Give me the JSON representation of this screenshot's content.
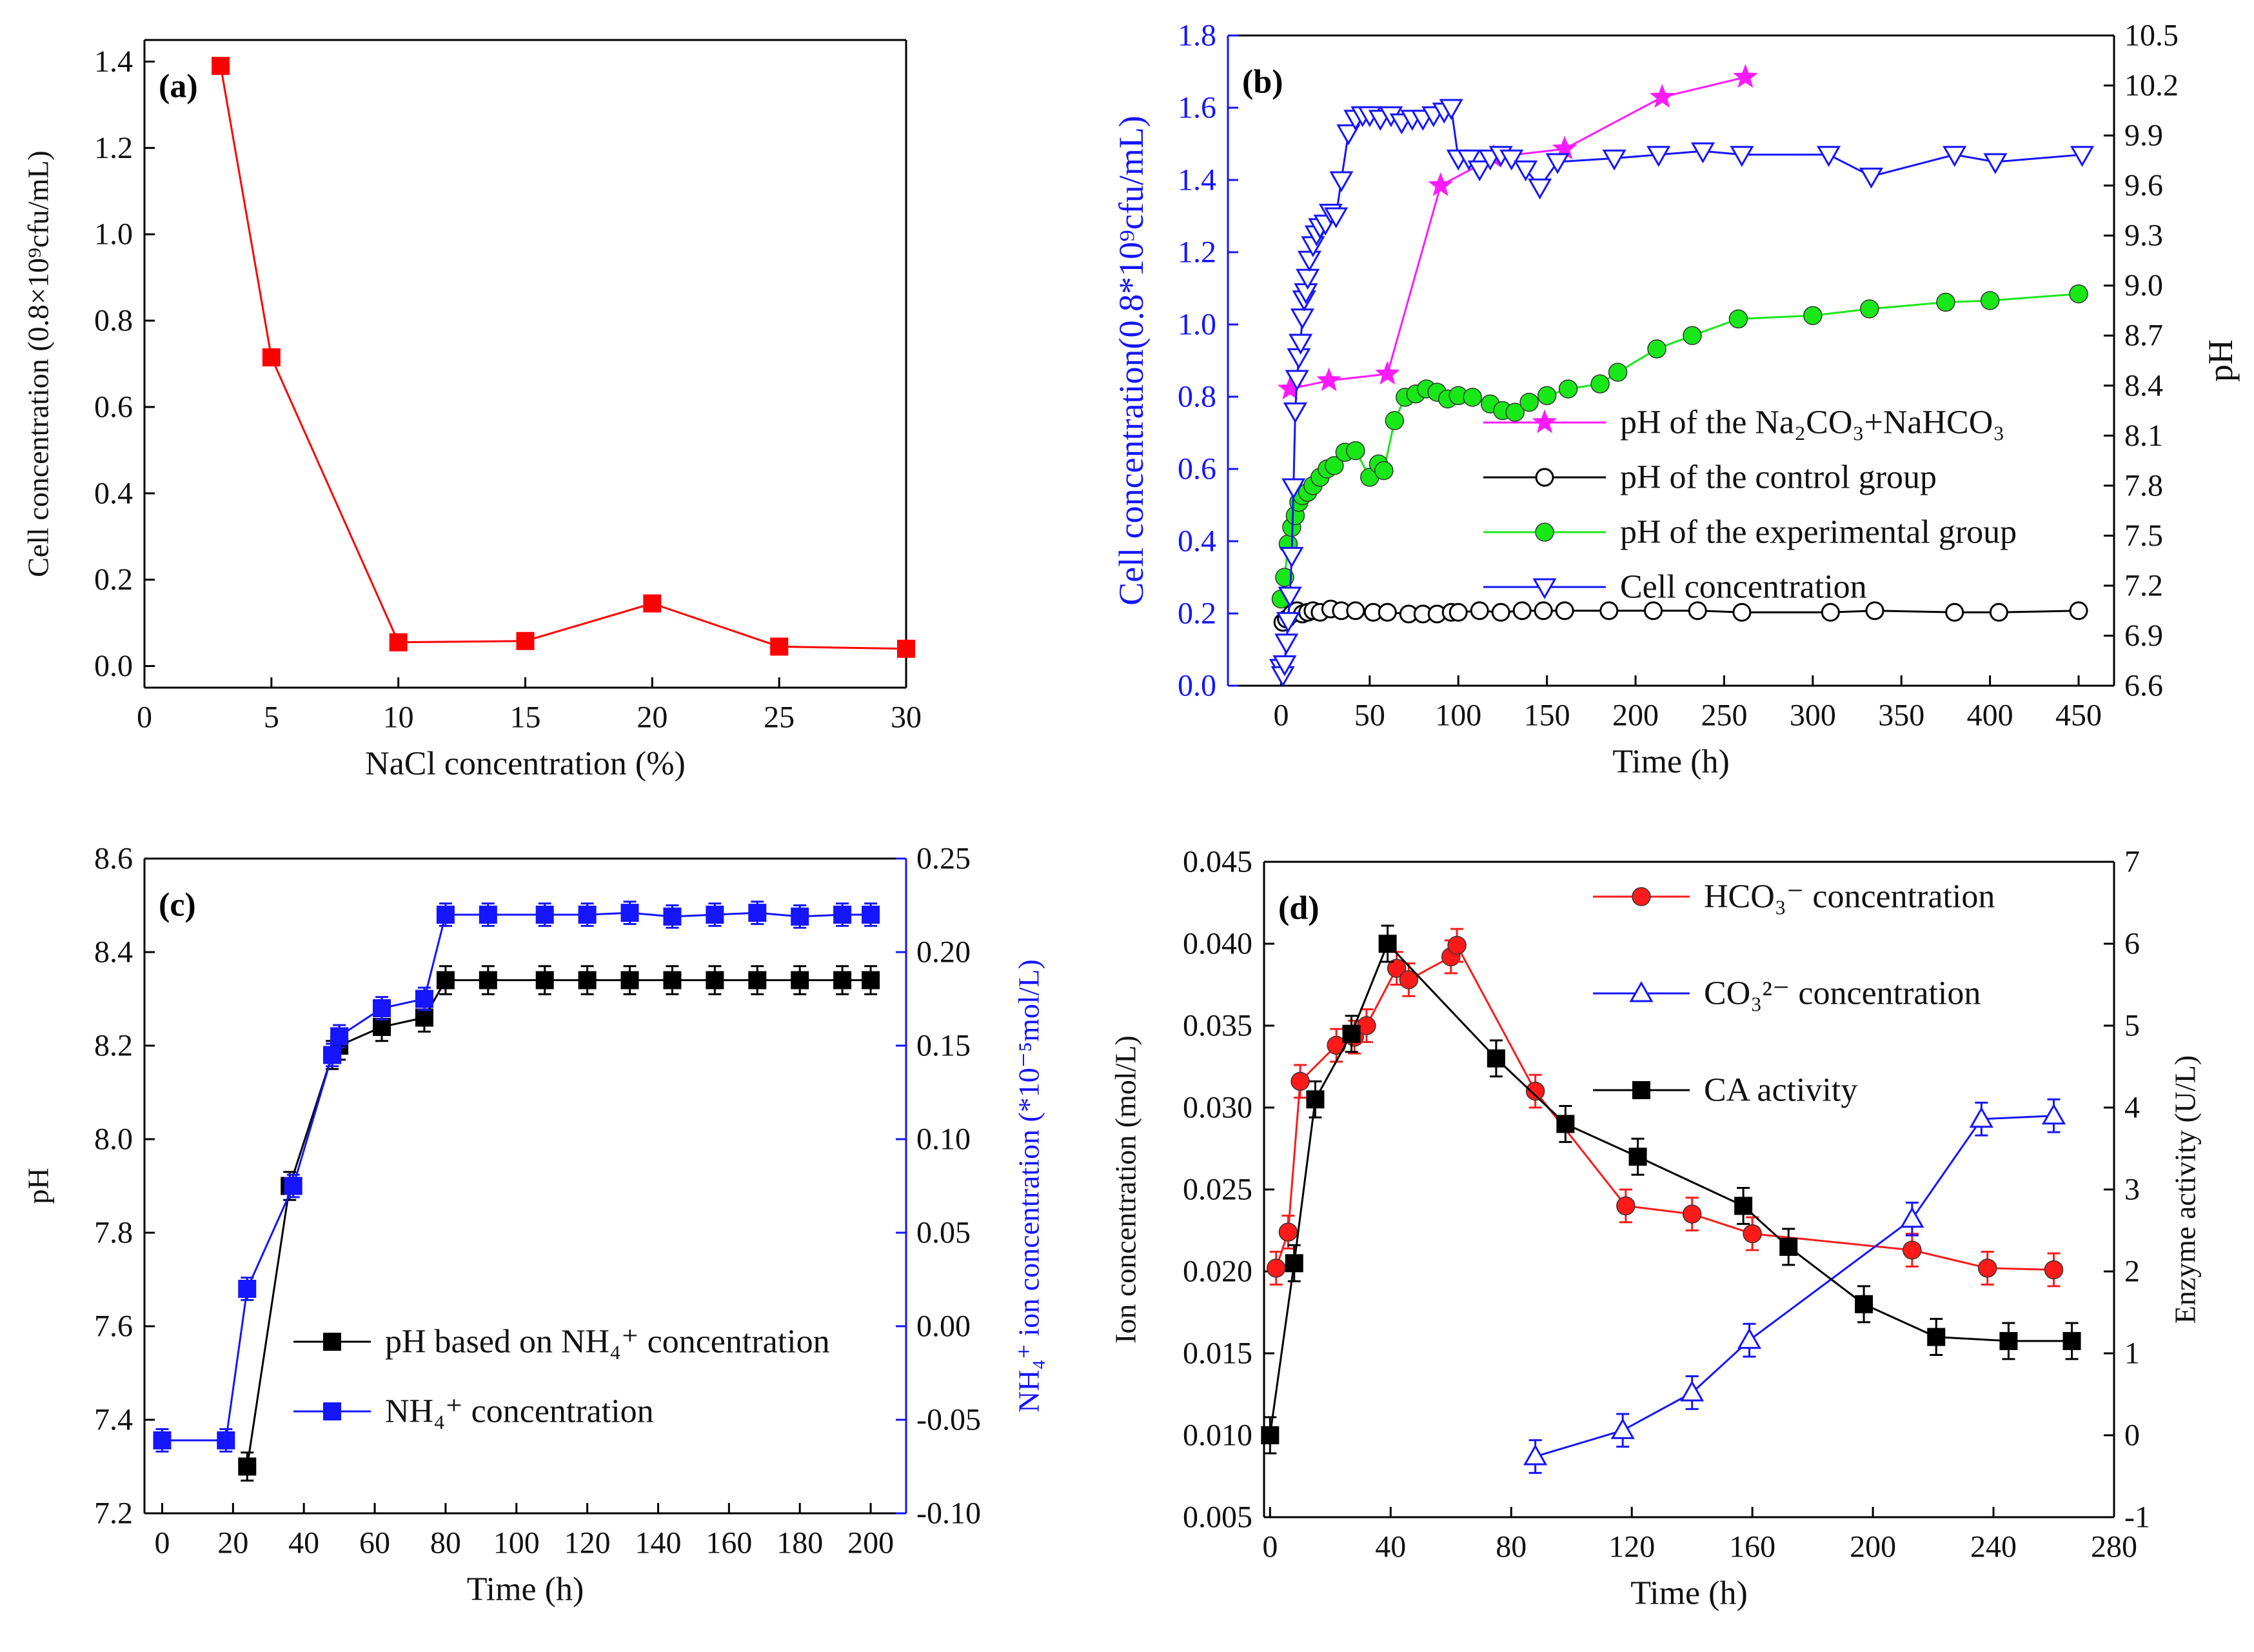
{
  "chart_data": [
    {
      "id": "a",
      "panel_label": "(a)",
      "type": "line",
      "xlabel": "NaCl concentration (%)",
      "ylabel": "Cell concentration (0.8×10⁹cfu/mL)",
      "xlim": [
        0,
        30
      ],
      "ylim": [
        -0.05,
        1.45
      ],
      "xticks": [
        0,
        5,
        10,
        15,
        20,
        25,
        30
      ],
      "xtick_labels": [
        "0",
        "5",
        "10",
        "15",
        "20",
        "25",
        "30"
      ],
      "yticks": [
        0.0,
        0.2,
        0.4,
        0.6,
        0.8,
        1.0,
        1.2,
        1.4
      ],
      "ytick_labels": [
        "0.0",
        "0.2",
        "0.4",
        "0.6",
        "0.8",
        "1.0",
        "1.2",
        "1.4"
      ],
      "series": [
        {
          "name": "Cell concentration",
          "color": "#ff0000",
          "marker": "square-filled",
          "x": [
            3,
            5,
            10,
            15,
            20,
            25,
            30
          ],
          "y": [
            1.39,
            0.715,
            0.055,
            0.058,
            0.145,
            0.045,
            0.04
          ]
        }
      ]
    },
    {
      "id": "b",
      "panel_label": "(b)",
      "type": "line",
      "xlabel": "Time (h)",
      "ylabel": "Cell concentration(0.8*10⁹cfu/mL)",
      "ylabel_color": "#1515ff",
      "y2label": "pH",
      "xlim": [
        -30,
        470
      ],
      "ylim": [
        0.0,
        1.8
      ],
      "y2lim": [
        6.6,
        10.5
      ],
      "xticks": [
        0,
        50,
        100,
        150,
        200,
        250,
        300,
        350,
        400,
        450
      ],
      "xtick_labels": [
        "0",
        "50",
        "100",
        "150",
        "200",
        "250",
        "300",
        "350",
        "400",
        "450"
      ],
      "yticks": [
        0.0,
        0.2,
        0.4,
        0.6,
        0.8,
        1.0,
        1.2,
        1.4,
        1.6,
        1.8
      ],
      "ytick_labels": [
        "0.0",
        "0.2",
        "0.4",
        "0.6",
        "0.8",
        "1.0",
        "1.2",
        "1.4",
        "1.6",
        "1.8"
      ],
      "y2ticks": [
        6.6,
        6.9,
        7.2,
        7.5,
        7.8,
        8.1,
        8.4,
        8.7,
        9.0,
        9.3,
        9.6,
        9.9,
        10.2,
        10.5
      ],
      "y2tick_labels": [
        "6.6",
        "6.9",
        "7.2",
        "7.5",
        "7.8",
        "8.1",
        "8.4",
        "8.7",
        "9.0",
        "9.3",
        "9.6",
        "9.9",
        "10.2",
        "10.5"
      ],
      "legend_position": "lower-right",
      "legend": [
        "pH of the Na₂CO₃+NaHCO₃",
        "pH of the control group",
        "pH of the experimental group",
        "Cell concentration"
      ],
      "series": [
        {
          "name": "pH of the Na₂CO₃+NaHCO₃",
          "axis": "right",
          "color": "#ff1aff",
          "marker": "star",
          "x": [
            5,
            27,
            60,
            90,
            120,
            160,
            215,
            262
          ],
          "y": [
            8.38,
            8.43,
            8.47,
            9.6,
            9.77,
            9.82,
            10.13,
            10.25
          ]
        },
        {
          "name": "pH of the control group",
          "axis": "right",
          "color": "#000000",
          "marker": "circle-open",
          "x": [
            1,
            3,
            6,
            9,
            12,
            15,
            18,
            22,
            28,
            34,
            42,
            52,
            60,
            72,
            80,
            88,
            96,
            100,
            112,
            124,
            136,
            148,
            160,
            185,
            210,
            235,
            260,
            310,
            335,
            380,
            405,
            450
          ],
          "y": [
            6.98,
            7.0,
            7.03,
            7.05,
            7.03,
            7.04,
            7.05,
            7.04,
            7.06,
            7.05,
            7.05,
            7.04,
            7.04,
            7.03,
            7.03,
            7.03,
            7.04,
            7.04,
            7.05,
            7.04,
            7.05,
            7.05,
            7.05,
            7.05,
            7.05,
            7.05,
            7.04,
            7.04,
            7.05,
            7.04,
            7.04,
            7.05
          ]
        },
        {
          "name": "pH of the experimental group",
          "axis": "right",
          "color": "#18e818",
          "marker": "circle-filled",
          "x": [
            0,
            2,
            4,
            6,
            8,
            10,
            12,
            15,
            18,
            22,
            26,
            30,
            36,
            42,
            50,
            55,
            58,
            64,
            70,
            76,
            82,
            88,
            94,
            100,
            108,
            118,
            125,
            132,
            140,
            150,
            162,
            180,
            190,
            212,
            232,
            258,
            300,
            332,
            375,
            400,
            450
          ],
          "y": [
            7.12,
            7.25,
            7.45,
            7.55,
            7.62,
            7.7,
            7.74,
            7.76,
            7.8,
            7.85,
            7.9,
            7.92,
            8.0,
            8.01,
            7.85,
            7.93,
            7.89,
            8.19,
            8.33,
            8.35,
            8.38,
            8.36,
            8.32,
            8.34,
            8.33,
            8.29,
            8.25,
            8.24,
            8.3,
            8.34,
            8.38,
            8.41,
            8.48,
            8.62,
            8.7,
            8.8,
            8.82,
            8.86,
            8.9,
            8.91,
            8.95
          ]
        },
        {
          "name": "Cell concentration",
          "axis": "left",
          "color": "#1515ff",
          "marker": "triangle-down-open",
          "x": [
            0,
            1,
            2,
            3,
            4,
            5,
            6,
            7,
            8,
            9,
            10,
            11,
            12,
            13,
            14,
            15,
            16,
            18,
            20,
            22,
            25,
            28,
            31,
            34,
            38,
            42,
            46,
            50,
            56,
            62,
            68,
            74,
            80,
            86,
            92,
            96,
            100,
            106,
            112,
            118,
            124,
            130,
            138,
            146,
            156,
            188,
            213,
            238,
            260,
            309,
            333,
            380,
            403,
            452
          ],
          "y": [
            0.05,
            0.03,
            0.06,
            0.12,
            0.18,
            0.25,
            0.36,
            0.55,
            0.76,
            0.85,
            0.91,
            0.95,
            1.02,
            1.07,
            1.09,
            1.13,
            1.18,
            1.22,
            1.25,
            1.27,
            1.28,
            1.31,
            1.3,
            1.4,
            1.53,
            1.57,
            1.58,
            1.58,
            1.57,
            1.58,
            1.56,
            1.57,
            1.57,
            1.58,
            1.59,
            1.6,
            1.46,
            1.46,
            1.43,
            1.46,
            1.47,
            1.46,
            1.43,
            1.38,
            1.45,
            1.46,
            1.47,
            1.48,
            1.47,
            1.47,
            1.41,
            1.47,
            1.45,
            1.47
          ]
        }
      ]
    },
    {
      "id": "c",
      "panel_label": "(c)",
      "type": "line",
      "xlabel": "Time (h)",
      "ylabel": "pH",
      "y2label": "NH₄⁺ ion concentration (*10⁻⁵mol/L)",
      "y2label_color": "#1515ff",
      "xlim": [
        -5,
        210
      ],
      "ylim": [
        7.2,
        8.6
      ],
      "y2lim": [
        -0.1,
        0.25
      ],
      "xticks": [
        0,
        20,
        40,
        60,
        80,
        100,
        120,
        140,
        160,
        180,
        200
      ],
      "xtick_labels": [
        "0",
        "20",
        "40",
        "60",
        "80",
        "100",
        "120",
        "140",
        "160",
        "180",
        "200"
      ],
      "yticks": [
        7.2,
        7.4,
        7.6,
        7.8,
        8.0,
        8.2,
        8.4,
        8.6
      ],
      "ytick_labels": [
        "7.2",
        "7.4",
        "7.6",
        "7.8",
        "8.0",
        "8.2",
        "8.4",
        "8.6"
      ],
      "y2ticks": [
        -0.1,
        -0.05,
        0.0,
        0.05,
        0.1,
        0.15,
        0.2,
        0.25
      ],
      "y2tick_labels": [
        "-0.10",
        "-0.05",
        "0.00",
        "0.05",
        "0.10",
        "0.15",
        "0.20",
        "0.25"
      ],
      "legend_position": "lower-center",
      "legend": [
        "pH based on NH₄⁺ concentration",
        "NH₄⁺ concentration"
      ],
      "series": [
        {
          "name": "pH based on NH₄⁺ concentration",
          "axis": "left",
          "color": "#000000",
          "marker": "square-filled",
          "x": [
            24,
            36,
            48,
            50,
            62,
            74,
            80,
            92,
            108,
            120,
            132,
            144,
            156,
            168,
            180,
            192,
            200
          ],
          "y": [
            7.3,
            7.9,
            8.18,
            8.2,
            8.24,
            8.26,
            8.34,
            8.34,
            8.34,
            8.34,
            8.34,
            8.34,
            8.34,
            8.34,
            8.34,
            8.34,
            8.34
          ],
          "err": 0.03
        },
        {
          "name": "NH₄⁺ concentration",
          "axis": "right",
          "color": "#1515ff",
          "marker": "square-filled",
          "x": [
            0,
            18,
            24,
            37,
            48,
            50,
            62,
            74,
            80,
            92,
            108,
            120,
            132,
            144,
            156,
            168,
            180,
            192,
            200
          ],
          "y": [
            -0.061,
            -0.061,
            0.02,
            0.075,
            0.145,
            0.155,
            0.17,
            0.175,
            0.22,
            0.22,
            0.22,
            0.22,
            0.221,
            0.219,
            0.22,
            0.221,
            0.219,
            0.22,
            0.22
          ],
          "err": 0.006
        }
      ]
    },
    {
      "id": "d",
      "panel_label": "(d)",
      "type": "line",
      "xlabel": "Time (h)",
      "ylabel": "Ion concentration (mol/L)",
      "y2label": "Enzyme activity (U/L)",
      "xlim": [
        -2,
        280
      ],
      "ylim": [
        0.005,
        0.045
      ],
      "y2lim": [
        -1,
        7
      ],
      "xticks": [
        0,
        40,
        80,
        120,
        160,
        200,
        240,
        280
      ],
      "xtick_labels": [
        "0",
        "40",
        "80",
        "120",
        "160",
        "200",
        "240",
        "280"
      ],
      "yticks": [
        0.005,
        0.01,
        0.015,
        0.02,
        0.025,
        0.03,
        0.035,
        0.04,
        0.045
      ],
      "ytick_labels": [
        "0.005",
        "0.010",
        "0.015",
        "0.020",
        "0.025",
        "0.030",
        "0.035",
        "0.040",
        "0.045"
      ],
      "y2ticks": [
        -1,
        0,
        1,
        2,
        3,
        4,
        5,
        6,
        7
      ],
      "y2tick_labels": [
        "-1",
        "0",
        "1",
        "2",
        "3",
        "4",
        "5",
        "6",
        "7"
      ],
      "legend_position": "top-right",
      "legend": [
        "HCO₃⁻ concentration",
        "CO₃²⁻ concentration",
        "CA  activity"
      ],
      "series": [
        {
          "name": "HCO₃⁻ concentration",
          "axis": "left",
          "color": "#ff1a1a",
          "marker": "circle-filled",
          "x": [
            2,
            6,
            10,
            22,
            28,
            32,
            42,
            46,
            60,
            62,
            88,
            118,
            140,
            160,
            213,
            238,
            260
          ],
          "y": [
            0.0202,
            0.0224,
            0.0316,
            0.0338,
            0.0343,
            0.035,
            0.0385,
            0.0378,
            0.0392,
            0.0399,
            0.031,
            0.024,
            0.0235,
            0.0223,
            0.0213,
            0.0202,
            0.0201
          ],
          "err": 0.001
        },
        {
          "name": "CO₃²⁻ concentration",
          "axis": "left",
          "color": "#1515ff",
          "marker": "triangle-open",
          "x": [
            88,
            117,
            140,
            159,
            213,
            236,
            260
          ],
          "y": [
            0.0087,
            0.0103,
            0.0126,
            0.0158,
            0.0232,
            0.0293,
            0.0295
          ],
          "err": 0.001
        },
        {
          "name": "CA  activity",
          "axis": "right",
          "color": "#000000",
          "marker": "square-filled",
          "x": [
            0,
            8,
            15,
            27,
            39,
            75,
            98,
            122,
            157,
            172,
            197,
            221,
            245,
            266
          ],
          "y": [
            0.0,
            2.1,
            4.1,
            4.9,
            6.0,
            4.6,
            3.8,
            3.4,
            2.8,
            2.3,
            1.6,
            1.2,
            1.15,
            1.15
          ],
          "err": 0.22
        }
      ]
    }
  ]
}
